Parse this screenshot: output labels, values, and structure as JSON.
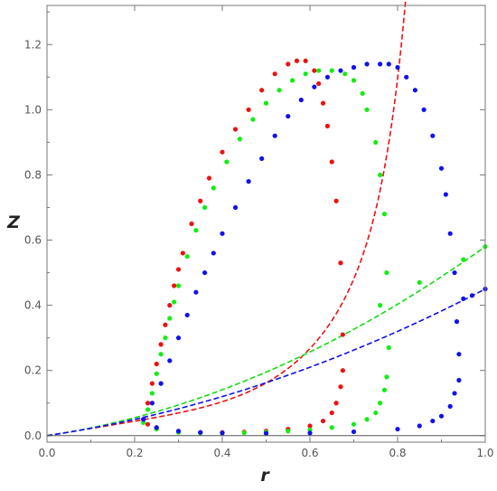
{
  "chart_data": {
    "type": "scatter",
    "xlabel": "r",
    "ylabel": "Z",
    "xlim": [
      0,
      1
    ],
    "ylim": [
      -0.02,
      1.32
    ],
    "x_ticks": [
      "0.0",
      "0.2",
      "0.4",
      "0.6",
      "0.8",
      "1.0"
    ],
    "y_ticks": [
      "0.0",
      "0.2",
      "0.4",
      "0.6",
      "0.8",
      "1.0",
      "1.2"
    ],
    "grid": false,
    "series": [
      {
        "color": "#ee1111",
        "marker": "dot",
        "points": [
          [
            0.22,
            0.05
          ],
          [
            0.23,
            0.1
          ],
          [
            0.24,
            0.16
          ],
          [
            0.25,
            0.22
          ],
          [
            0.26,
            0.28
          ],
          [
            0.27,
            0.34
          ],
          [
            0.28,
            0.4
          ],
          [
            0.29,
            0.46
          ],
          [
            0.3,
            0.51
          ],
          [
            0.31,
            0.56
          ],
          [
            0.33,
            0.65
          ],
          [
            0.35,
            0.72
          ],
          [
            0.37,
            0.79
          ],
          [
            0.4,
            0.87
          ],
          [
            0.43,
            0.94
          ],
          [
            0.46,
            1.0
          ],
          [
            0.49,
            1.06
          ],
          [
            0.52,
            1.11
          ],
          [
            0.55,
            1.14
          ],
          [
            0.57,
            1.15
          ],
          [
            0.59,
            1.15
          ],
          [
            0.61,
            1.12
          ],
          [
            0.62,
            1.08
          ],
          [
            0.63,
            1.02
          ],
          [
            0.64,
            0.95
          ],
          [
            0.65,
            0.84
          ],
          [
            0.66,
            0.72
          ],
          [
            0.67,
            0.53
          ],
          [
            0.675,
            0.31
          ],
          [
            0.23,
            0.035
          ],
          [
            0.25,
            0.022
          ],
          [
            0.3,
            0.013
          ],
          [
            0.35,
            0.01
          ],
          [
            0.4,
            0.01
          ],
          [
            0.45,
            0.011
          ],
          [
            0.5,
            0.014
          ],
          [
            0.55,
            0.02
          ],
          [
            0.6,
            0.03
          ],
          [
            0.63,
            0.045
          ],
          [
            0.65,
            0.07
          ],
          [
            0.66,
            0.1
          ],
          [
            0.67,
            0.15
          ],
          [
            0.675,
            0.2
          ]
        ]
      },
      {
        "color": "#11ee11",
        "marker": "dot",
        "points": [
          [
            0.22,
            0.04
          ],
          [
            0.23,
            0.08
          ],
          [
            0.24,
            0.13
          ],
          [
            0.25,
            0.19
          ],
          [
            0.26,
            0.25
          ],
          [
            0.27,
            0.3
          ],
          [
            0.28,
            0.36
          ],
          [
            0.29,
            0.41
          ],
          [
            0.3,
            0.46
          ],
          [
            0.32,
            0.55
          ],
          [
            0.34,
            0.63
          ],
          [
            0.36,
            0.7
          ],
          [
            0.38,
            0.76
          ],
          [
            0.41,
            0.84
          ],
          [
            0.44,
            0.91
          ],
          [
            0.47,
            0.97
          ],
          [
            0.5,
            1.02
          ],
          [
            0.53,
            1.06
          ],
          [
            0.56,
            1.09
          ],
          [
            0.59,
            1.11
          ],
          [
            0.62,
            1.12
          ],
          [
            0.65,
            1.12
          ],
          [
            0.68,
            1.11
          ],
          [
            0.7,
            1.09
          ],
          [
            0.72,
            1.05
          ],
          [
            0.73,
            1.0
          ],
          [
            0.75,
            0.9
          ],
          [
            0.76,
            0.8
          ],
          [
            0.77,
            0.68
          ],
          [
            0.775,
            0.5
          ],
          [
            0.78,
            0.27
          ],
          [
            0.25,
            0.02
          ],
          [
            0.3,
            0.01
          ],
          [
            0.35,
            0.008
          ],
          [
            0.4,
            0.008
          ],
          [
            0.45,
            0.009
          ],
          [
            0.5,
            0.011
          ],
          [
            0.55,
            0.014
          ],
          [
            0.6,
            0.018
          ],
          [
            0.65,
            0.025
          ],
          [
            0.7,
            0.035
          ],
          [
            0.73,
            0.05
          ],
          [
            0.75,
            0.07
          ],
          [
            0.76,
            0.1
          ],
          [
            0.77,
            0.14
          ],
          [
            0.775,
            0.18
          ],
          [
            0.76,
            0.4
          ],
          [
            0.85,
            0.47
          ],
          [
            0.95,
            0.54
          ],
          [
            1.0,
            0.58
          ]
        ]
      },
      {
        "color": "#1111ee",
        "marker": "dot",
        "points": [
          [
            0.22,
            0.05
          ],
          [
            0.24,
            0.1
          ],
          [
            0.26,
            0.16
          ],
          [
            0.28,
            0.23
          ],
          [
            0.3,
            0.3
          ],
          [
            0.32,
            0.37
          ],
          [
            0.34,
            0.44
          ],
          [
            0.36,
            0.5
          ],
          [
            0.38,
            0.56
          ],
          [
            0.4,
            0.62
          ],
          [
            0.43,
            0.7
          ],
          [
            0.46,
            0.78
          ],
          [
            0.49,
            0.85
          ],
          [
            0.52,
            0.92
          ],
          [
            0.55,
            0.98
          ],
          [
            0.58,
            1.03
          ],
          [
            0.61,
            1.07
          ],
          [
            0.64,
            1.1
          ],
          [
            0.67,
            1.12
          ],
          [
            0.7,
            1.13
          ],
          [
            0.73,
            1.14
          ],
          [
            0.76,
            1.14
          ],
          [
            0.78,
            1.14
          ],
          [
            0.8,
            1.13
          ],
          [
            0.82,
            1.1
          ],
          [
            0.84,
            1.06
          ],
          [
            0.86,
            1.0
          ],
          [
            0.88,
            0.92
          ],
          [
            0.9,
            0.82
          ],
          [
            0.91,
            0.74
          ],
          [
            0.92,
            0.62
          ],
          [
            0.93,
            0.5
          ],
          [
            0.935,
            0.35
          ],
          [
            0.94,
            0.25
          ],
          [
            0.25,
            0.025
          ],
          [
            0.3,
            0.014
          ],
          [
            0.35,
            0.01
          ],
          [
            0.4,
            0.008
          ],
          [
            0.5,
            0.007
          ],
          [
            0.6,
            0.008
          ],
          [
            0.7,
            0.012
          ],
          [
            0.8,
            0.02
          ],
          [
            0.85,
            0.03
          ],
          [
            0.88,
            0.045
          ],
          [
            0.9,
            0.06
          ],
          [
            0.92,
            0.09
          ],
          [
            0.93,
            0.13
          ],
          [
            0.94,
            0.17
          ],
          [
            0.95,
            0.42
          ],
          [
            0.97,
            0.43
          ],
          [
            1.0,
            0.45
          ]
        ]
      }
    ],
    "curves": [
      {
        "color": "#ee1111",
        "style": "dashed",
        "x_end": 0.868
      },
      {
        "color": "#11dd11",
        "style": "dashed",
        "x_end": 1.0
      },
      {
        "color": "#1111ee",
        "style": "dashed",
        "x_end": 1.0
      }
    ]
  }
}
